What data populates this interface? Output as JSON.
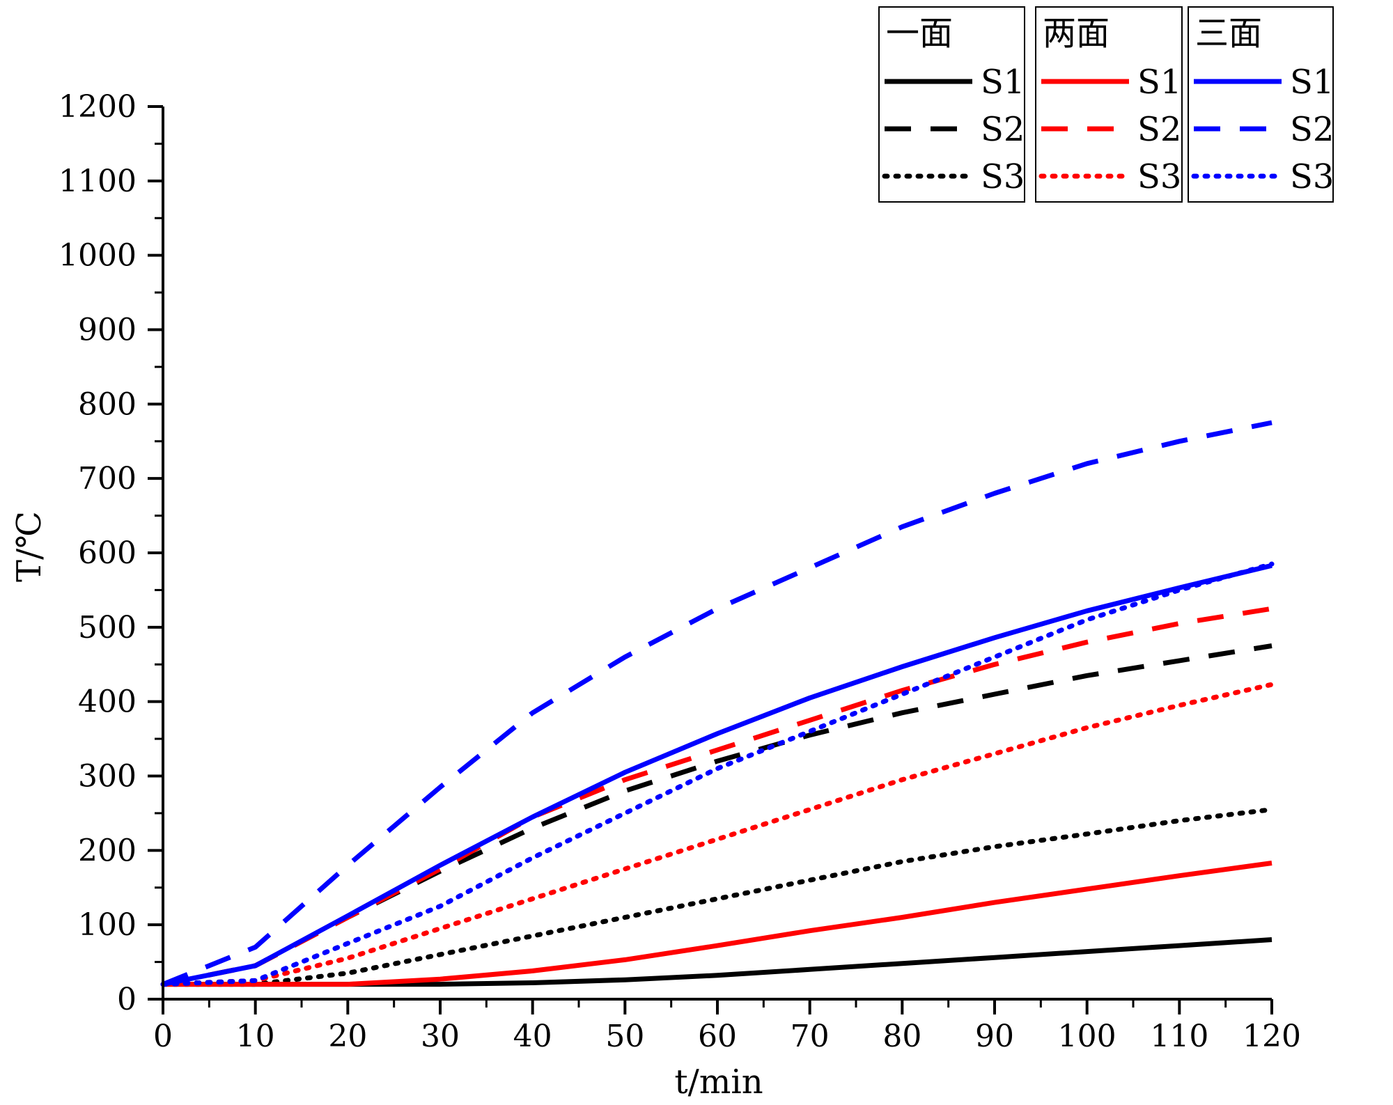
{
  "chart_data": {
    "type": "line",
    "title": "",
    "xlabel": "t/min",
    "ylabel": "T/℃",
    "xlim": [
      0,
      120
    ],
    "ylim": [
      0,
      1200
    ],
    "x_ticks": [
      0,
      10,
      20,
      30,
      40,
      50,
      60,
      70,
      80,
      90,
      100,
      110,
      120
    ],
    "y_ticks": [
      0,
      100,
      200,
      300,
      400,
      500,
      600,
      700,
      800,
      900,
      1000,
      1100,
      1200
    ],
    "grid": false,
    "legend_position": "top-right",
    "legend_groups": [
      {
        "title": "一面",
        "color": "#000000",
        "labels": [
          "S1",
          "S2",
          "S3"
        ]
      },
      {
        "title": "两面",
        "color": "#ff0000",
        "labels": [
          "S1",
          "S2",
          "S3"
        ]
      },
      {
        "title": "三面",
        "color": "#0000ff",
        "labels": [
          "S1",
          "S2",
          "S3"
        ]
      }
    ],
    "x": [
      0,
      10,
      20,
      30,
      40,
      50,
      60,
      70,
      80,
      90,
      100,
      110,
      120
    ],
    "series": [
      {
        "name": "一面 S1",
        "group": "一面",
        "color": "#000000",
        "style": "solid",
        "values": [
          20,
          20,
          20,
          20,
          22,
          26,
          32,
          40,
          48,
          56,
          64,
          72,
          80
        ]
      },
      {
        "name": "一面 S2",
        "group": "一面",
        "color": "#000000",
        "style": "dashed",
        "values": [
          20,
          45,
          110,
          172,
          230,
          280,
          320,
          355,
          385,
          410,
          435,
          455,
          475
        ]
      },
      {
        "name": "一面 S3",
        "group": "一面",
        "color": "#000000",
        "style": "dotted",
        "values": [
          20,
          20,
          35,
          60,
          85,
          110,
          135,
          160,
          185,
          205,
          222,
          240,
          255
        ]
      },
      {
        "name": "两面 S1",
        "group": "两面",
        "color": "#ff0000",
        "style": "solid",
        "values": [
          20,
          20,
          20,
          27,
          38,
          53,
          72,
          92,
          110,
          130,
          148,
          166,
          183
        ]
      },
      {
        "name": "两面 S2",
        "group": "两面",
        "color": "#ff0000",
        "style": "dashed",
        "values": [
          20,
          45,
          110,
          175,
          245,
          295,
          335,
          375,
          415,
          450,
          480,
          505,
          525
        ]
      },
      {
        "name": "两面 S3",
        "group": "两面",
        "color": "#ff0000",
        "style": "dotted",
        "values": [
          20,
          25,
          55,
          95,
          135,
          175,
          215,
          255,
          295,
          330,
          365,
          395,
          423
        ]
      },
      {
        "name": "三面 S1",
        "group": "三面",
        "color": "#0000ff",
        "style": "solid",
        "values": [
          20,
          45,
          112,
          180,
          245,
          305,
          357,
          405,
          447,
          486,
          522,
          553,
          583
        ]
      },
      {
        "name": "三面 S2",
        "group": "三面",
        "color": "#0000ff",
        "style": "dashed",
        "values": [
          20,
          70,
          180,
          285,
          385,
          460,
          525,
          580,
          635,
          680,
          720,
          750,
          775
        ]
      },
      {
        "name": "三面 S3",
        "group": "三面",
        "color": "#0000ff",
        "style": "dotted",
        "values": [
          20,
          25,
          75,
          125,
          190,
          250,
          310,
          360,
          410,
          460,
          510,
          550,
          585
        ]
      }
    ]
  }
}
